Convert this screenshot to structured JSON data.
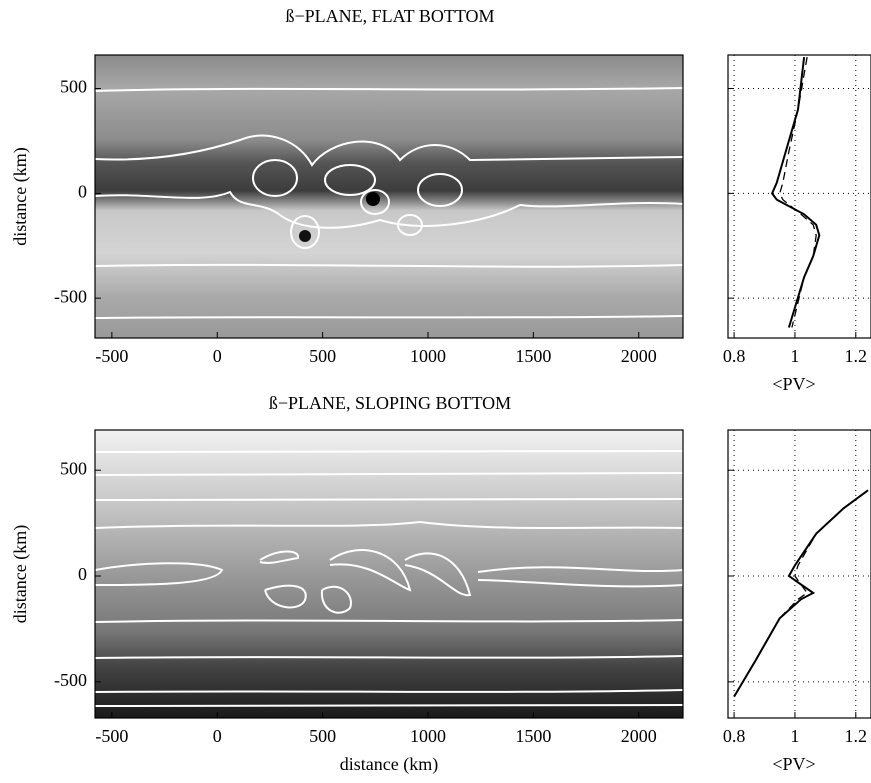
{
  "chart_data": [
    {
      "type": "field",
      "title": "ß−PLANE, FLAT BOTTOM",
      "ylabel": "distance (km)",
      "xlim": [
        -580,
        2210
      ],
      "ylim": [
        -690,
        660
      ],
      "xticks": [
        -500,
        0,
        500,
        1000,
        1500,
        2000
      ],
      "yticks": [
        -500,
        0,
        500
      ]
    },
    {
      "type": "profile",
      "xlabel": "<PV>",
      "xlim": [
        0.78,
        1.25
      ],
      "ylim": [
        -690,
        660
      ],
      "xticks": [
        0.8,
        1,
        1.2
      ],
      "yticks": [
        -500,
        0,
        500
      ],
      "grid": true,
      "series": [
        {
          "style": "solid",
          "color": "#000",
          "x": [
            1.03,
            1.01,
            0.97,
            0.94,
            0.925,
            0.94,
            1.03,
            1.07,
            1.08,
            1.06,
            1.03,
            0.98
          ],
          "y": [
            650,
            400,
            200,
            50,
            0,
            -30,
            -100,
            -150,
            -200,
            -300,
            -400,
            -640
          ]
        },
        {
          "style": "dashed",
          "color": "#000",
          "x": [
            1.04,
            1.01,
            0.98,
            0.96,
            0.95,
            0.96,
            1.02,
            1.06,
            1.07,
            1.06,
            1.03,
            0.99
          ],
          "y": [
            650,
            400,
            200,
            50,
            0,
            -30,
            -100,
            -150,
            -200,
            -300,
            -400,
            -640
          ]
        }
      ]
    },
    {
      "type": "field",
      "title": "ß−PLANE, SLOPING BOTTOM",
      "ylabel": "distance (km)",
      "xlabel": "distance (km)",
      "xlim": [
        -580,
        2210
      ],
      "ylim": [
        -671,
        690
      ],
      "xticks": [
        -500,
        0,
        500,
        1000,
        1500,
        2000
      ],
      "yticks": [
        -500,
        0,
        500
      ]
    },
    {
      "type": "profile",
      "xlabel": "<PV>",
      "xlim": [
        0.78,
        1.25
      ],
      "ylim": [
        -671,
        690
      ],
      "xticks": [
        0.8,
        1,
        1.2
      ],
      "yticks": [
        -500,
        0,
        500
      ],
      "grid": true,
      "series": [
        {
          "style": "solid",
          "color": "#000",
          "x": [
            0.8,
            0.87,
            0.95,
            1.02,
            1.06,
            1.02,
            0.98,
            1.0,
            1.07,
            1.16,
            1.24
          ],
          "y": [
            -570,
            -400,
            -200,
            -110,
            -80,
            -40,
            0,
            50,
            200,
            320,
            405
          ]
        },
        {
          "style": "dashed",
          "color": "#000",
          "x": [
            0.8,
            0.87,
            0.95,
            1.01,
            1.04,
            1.02,
            1.0,
            1.01,
            1.07,
            1.16,
            1.24
          ],
          "y": [
            -570,
            -400,
            -200,
            -110,
            -80,
            -40,
            0,
            50,
            200,
            320,
            405
          ]
        }
      ]
    }
  ]
}
